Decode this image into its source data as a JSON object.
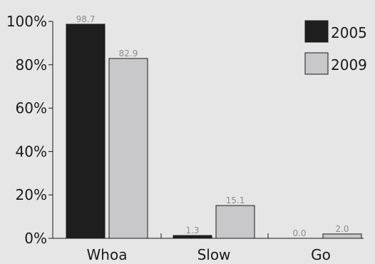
{
  "chart_data": {
    "type": "bar",
    "categories": [
      "Whoa",
      "Slow",
      "Go"
    ],
    "series": [
      {
        "name": "2005",
        "values": [
          98.7,
          1.3,
          0.0
        ],
        "labels": [
          "98.7",
          "1.3",
          "0.0"
        ],
        "color": "#1e1e1e"
      },
      {
        "name": "2009",
        "values": [
          82.9,
          15.1,
          2.0
        ],
        "labels": [
          "82.9",
          "15.1",
          "2.0"
        ],
        "color": "#c8c8cb"
      }
    ],
    "yticks": [
      {
        "value": 0,
        "label": "0%"
      },
      {
        "value": 20,
        "label": "20%"
      },
      {
        "value": 40,
        "label": "40%"
      },
      {
        "value": 60,
        "label": "60%"
      },
      {
        "value": 80,
        "label": "80%"
      },
      {
        "value": 100,
        "label": "100%"
      }
    ],
    "ylim": [
      0,
      100
    ],
    "grid": false,
    "legend": "top-right"
  }
}
